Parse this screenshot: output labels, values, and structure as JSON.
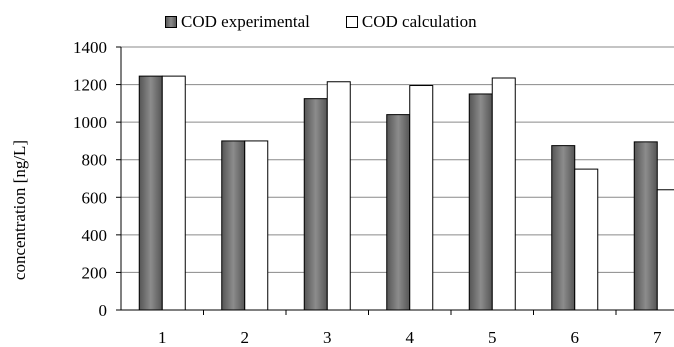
{
  "chart_data": {
    "type": "bar",
    "title": "",
    "xlabel": "",
    "ylabel": "concentration [ng/L]",
    "ylim": [
      0,
      1400
    ],
    "yticks": [
      0,
      200,
      400,
      600,
      800,
      1000,
      1200,
      1400
    ],
    "grid": true,
    "legend_position": "top",
    "categories": [
      "1",
      "2",
      "3",
      "4",
      "5",
      "6",
      "7"
    ],
    "series": [
      {
        "name": "COD experimental",
        "color": "#707070",
        "values": [
          1245,
          900,
          1125,
          1040,
          1150,
          875,
          895
        ]
      },
      {
        "name": "COD calculation",
        "color": "#ffffff",
        "values": [
          1245,
          900,
          1215,
          1195,
          1235,
          750,
          640
        ]
      }
    ]
  }
}
